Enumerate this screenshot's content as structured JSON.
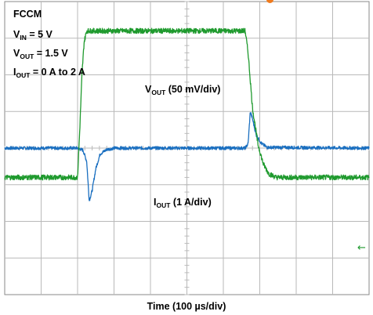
{
  "annotations": {
    "mode": "FCCM",
    "vin": {
      "prefix": "V",
      "sub": "IN",
      "suffix": " = 5 V"
    },
    "vout": {
      "prefix": "V",
      "sub": "OUT",
      "suffix": " = 1.5 V"
    },
    "iout": {
      "prefix": "I",
      "sub": "OUT",
      "suffix": " = 0 A to 2 A"
    }
  },
  "channel_labels": {
    "vout": {
      "prefix": "V",
      "sub": "OUT",
      "suffix": " (50 mV/div)"
    },
    "iout": {
      "prefix": "I",
      "sub": "OUT",
      "suffix": " (1 A/div)"
    }
  },
  "xlabel": "Time (100 µs/div)",
  "colors": {
    "vout_trace": "#1a6fc0",
    "iout_trace": "#1f9a2e",
    "grid": "#b9b9b9",
    "frame": "#8a8a8a",
    "trigger_marker": "#f07a1c",
    "ground_marker": "#1f9a2e"
  },
  "markers": {
    "trigger": "trigger-marker",
    "ground_ref": "←"
  },
  "chart_data": {
    "type": "line",
    "grid": {
      "x_divisions": 10,
      "y_divisions": 8,
      "on": true
    },
    "x_unit_per_div": "100 µs",
    "xlim": [
      0,
      1000
    ],
    "series": [
      {
        "name": "VOUT",
        "scale_per_div": "50 mV",
        "ylim": [
          -200,
          200
        ],
        "x": [
          0,
          200,
          215,
          225,
          232,
          240,
          250,
          262,
          280,
          300,
          660,
          668,
          674,
          680,
          690,
          705,
          720,
          1000
        ],
        "y": [
          0,
          0,
          -3,
          -18,
          -72,
          -58,
          -28,
          -8,
          -2,
          0,
          0,
          6,
          50,
          40,
          18,
          6,
          1,
          0
        ]
      },
      {
        "name": "IOUT",
        "scale_per_div": "1 A",
        "ylim": [
          -3.6,
          0.4
        ],
        "x": [
          0,
          200,
          206,
          212,
          218,
          225,
          660,
          668,
          680,
          695,
          710,
          725,
          745,
          1000
        ],
        "y": [
          -2.0,
          -2.0,
          -1.35,
          -0.6,
          -0.15,
          0,
          0,
          -0.3,
          -1.05,
          -1.55,
          -1.82,
          -1.95,
          -2.0,
          -2.0
        ]
      }
    ]
  }
}
